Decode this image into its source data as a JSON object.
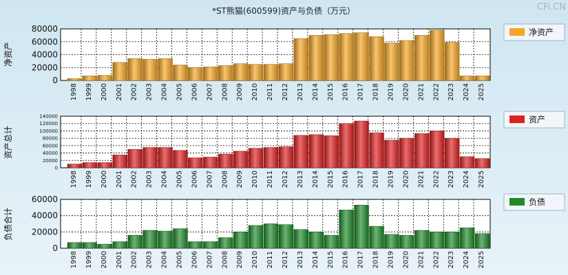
{
  "title": "*ST熊猫(600599)资产与负债（万元）",
  "watermark": "CFi.CN",
  "colors": {
    "net_assets": "#f5a623",
    "assets": "#e02020",
    "liabilities": "#1f8a2a"
  },
  "chart_data": [
    {
      "type": "bar",
      "name": "净资产",
      "ylabel": "净资产",
      "legend": "净资产",
      "ylim": [
        0,
        80000
      ],
      "yticks": [
        0,
        20000,
        40000,
        60000,
        80000
      ],
      "categories": [
        "1998",
        "1999",
        "2000",
        "2001",
        "2002",
        "2003",
        "2004",
        "2005",
        "2006",
        "2007",
        "2008",
        "2009",
        "2010",
        "2011",
        "2012",
        "2013",
        "2014",
        "2015",
        "2016",
        "2017",
        "2018",
        "2019",
        "2020",
        "2021",
        "2022",
        "2023",
        "2024",
        "2025"
      ],
      "values": [
        3000,
        7000,
        8000,
        28000,
        34000,
        33000,
        34000,
        24000,
        20000,
        21000,
        23000,
        26000,
        25000,
        25000,
        26000,
        65000,
        70000,
        71000,
        73000,
        74000,
        68000,
        58000,
        62000,
        70000,
        78000,
        59000,
        7000,
        7000
      ]
    },
    {
      "type": "bar",
      "name": "资产",
      "ylabel": "资产总计",
      "legend": "资产",
      "ylim": [
        0,
        140000
      ],
      "yticks": [
        0,
        20000,
        40000,
        60000,
        80000,
        100000,
        120000,
        140000
      ],
      "categories": [
        "1998",
        "1999",
        "2000",
        "2001",
        "2002",
        "2003",
        "2004",
        "2005",
        "2006",
        "2007",
        "2008",
        "2009",
        "2010",
        "2011",
        "2012",
        "2013",
        "2014",
        "2015",
        "2016",
        "2017",
        "2018",
        "2019",
        "2020",
        "2021",
        "2022",
        "2023",
        "2024",
        "2025"
      ],
      "values": [
        10000,
        14000,
        14000,
        35000,
        50000,
        55000,
        55000,
        47000,
        27000,
        29000,
        37000,
        45000,
        53000,
        55000,
        57000,
        88000,
        90000,
        87000,
        120000,
        127000,
        95000,
        75000,
        80000,
        93000,
        100000,
        80000,
        30000,
        25000
      ]
    },
    {
      "type": "bar",
      "name": "负债",
      "ylabel": "负债合计",
      "legend": "负债",
      "ylim": [
        0,
        60000
      ],
      "yticks": [
        0,
        20000,
        40000,
        60000
      ],
      "categories": [
        "1998",
        "1999",
        "2000",
        "2001",
        "2002",
        "2003",
        "2004",
        "2005",
        "2006",
        "2007",
        "2008",
        "2009",
        "2010",
        "2011",
        "2012",
        "2013",
        "2014",
        "2015",
        "2016",
        "2017",
        "2018",
        "2019",
        "2020",
        "2021",
        "2022",
        "2023",
        "2024",
        "2025"
      ],
      "values": [
        7000,
        7000,
        5000,
        8000,
        16000,
        22000,
        21000,
        24000,
        8000,
        8000,
        13000,
        20000,
        28000,
        30000,
        29000,
        23000,
        20000,
        16000,
        47000,
        53000,
        27000,
        17000,
        16000,
        22000,
        20000,
        20000,
        25000,
        18000
      ]
    }
  ]
}
